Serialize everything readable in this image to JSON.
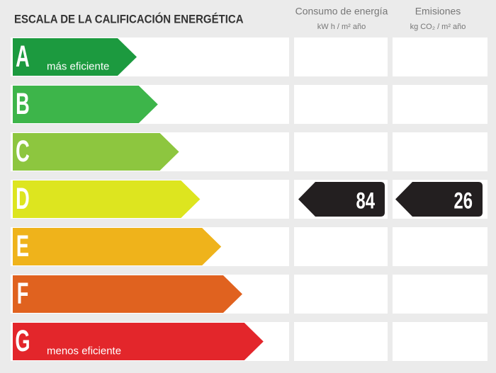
{
  "header": {
    "title": "ESCALA DE LA CALIFICACIÓN ENERGÉTICA"
  },
  "columns": [
    {
      "title": "Consumo de energía",
      "unit": "kW h / m² año"
    },
    {
      "title": "Emisiones",
      "unit": "kg CO₂ / m² año"
    }
  ],
  "ratings": [
    {
      "letter": "A",
      "color": "#1c9a3f",
      "note": "más eficiente"
    },
    {
      "letter": "B",
      "color": "#3db54a"
    },
    {
      "letter": "C",
      "color": "#8dc63f"
    },
    {
      "letter": "D",
      "color": "#dde51f"
    },
    {
      "letter": "E",
      "color": "#efb31b"
    },
    {
      "letter": "F",
      "color": "#e0621f"
    },
    {
      "letter": "G",
      "color": "#e3262b",
      "note": "menos eficiente"
    }
  ],
  "current": {
    "rating": "D",
    "values": [
      84,
      26
    ]
  }
}
